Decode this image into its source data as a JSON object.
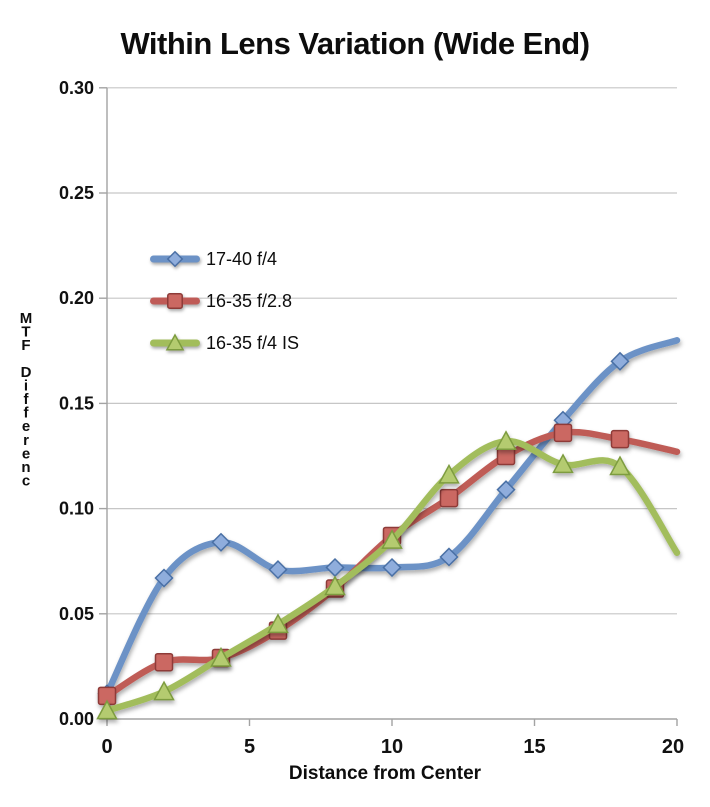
{
  "title": "Within Lens Variation (Wide End)",
  "legend": {
    "items": [
      {
        "label": "17-40 f/4"
      },
      {
        "label": "16-35 f/2.8"
      },
      {
        "label": "16-35 f/4 IS"
      }
    ]
  },
  "chart_data": {
    "type": "line",
    "title": "Within Lens Variation (Wide End)",
    "xlabel": "Distance from Center",
    "ylabel": "MTF Differenc",
    "x": [
      0,
      2,
      4,
      6,
      8,
      10,
      12,
      14,
      16,
      18,
      20
    ],
    "series": [
      {
        "name": "17-40 f/4",
        "marker": "diamond",
        "line_color": "#6C92C6",
        "marker_fill": "#8FADDC",
        "marker_stroke": "#4A6FA5",
        "values": [
          0.012,
          0.067,
          0.084,
          0.071,
          0.072,
          0.072,
          0.077,
          0.109,
          0.142,
          0.17,
          0.18
        ]
      },
      {
        "name": "16-35 f/2.8",
        "marker": "square",
        "line_color": "#BF5B57",
        "marker_fill": "#CB6862",
        "marker_stroke": "#8E3B38",
        "values": [
          0.011,
          0.027,
          0.029,
          0.042,
          0.062,
          0.087,
          0.105,
          0.125,
          0.136,
          0.133,
          0.127
        ]
      },
      {
        "name": "16-35 f/4 IS",
        "marker": "triangle",
        "line_color": "#A2BD5B",
        "marker_fill": "#B4CB6F",
        "marker_stroke": "#7D9C3F",
        "values": [
          0.004,
          0.013,
          0.029,
          0.045,
          0.063,
          0.085,
          0.116,
          0.132,
          0.121,
          0.12,
          0.079
        ]
      }
    ],
    "xlim": [
      0,
      20
    ],
    "ylim": [
      0,
      0.3
    ],
    "xticks": [
      0,
      5,
      10,
      15,
      20
    ],
    "xtick_labels": [
      "0",
      "5",
      "10",
      "15",
      "20"
    ],
    "yticks": [
      0.0,
      0.05,
      0.1,
      0.15,
      0.2,
      0.25,
      0.3
    ],
    "ytick_labels": [
      "0.00",
      "0.05",
      "0.10",
      "0.15",
      "0.20",
      "0.25",
      "0.30"
    ],
    "grid": "horizontal",
    "legend_position": "inside-upper-left",
    "marker_on_last_point": false
  }
}
